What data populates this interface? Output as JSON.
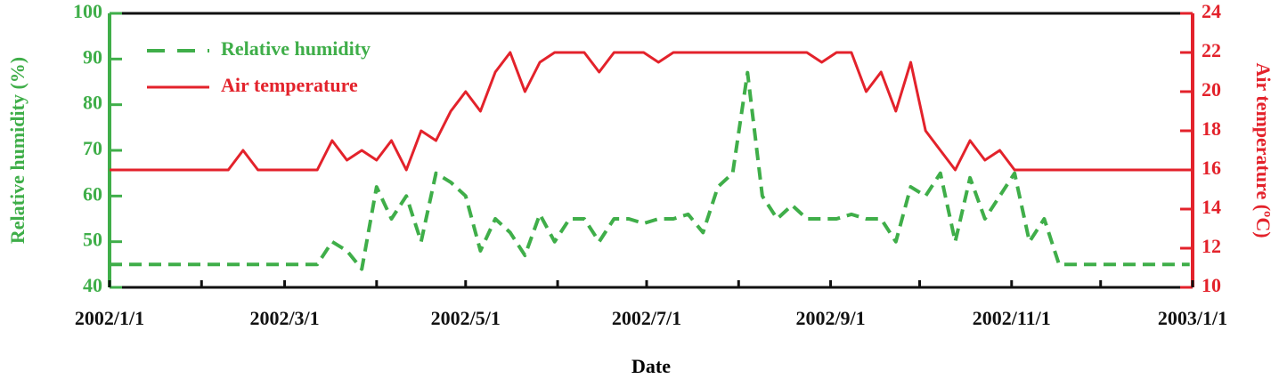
{
  "chart_data": {
    "type": "line",
    "xlabel": "Date",
    "ylabel": "Relative humidity (%)",
    "y2label": "Air temperature (ºC)",
    "x": [
      "2002/1/1",
      "2002/1/6",
      "2002/1/11",
      "2002/1/16",
      "2002/1/21",
      "2002/1/26",
      "2002/1/31",
      "2002/2/5",
      "2002/2/10",
      "2002/2/15",
      "2002/2/20",
      "2002/2/25",
      "2002/3/2",
      "2002/3/7",
      "2002/3/12",
      "2002/3/17",
      "2002/3/22",
      "2002/3/27",
      "2002/4/1",
      "2002/4/6",
      "2002/4/11",
      "2002/4/16",
      "2002/4/21",
      "2002/4/26",
      "2002/5/1",
      "2002/5/6",
      "2002/5/11",
      "2002/5/16",
      "2002/5/21",
      "2002/5/26",
      "2002/5/31",
      "2002/6/5",
      "2002/6/10",
      "2002/6/15",
      "2002/6/20",
      "2002/6/25",
      "2002/6/30",
      "2002/7/5",
      "2002/7/10",
      "2002/7/15",
      "2002/7/20",
      "2002/7/25",
      "2002/7/30",
      "2002/8/4",
      "2002/8/9",
      "2002/8/14",
      "2002/8/19",
      "2002/8/24",
      "2002/8/29",
      "2002/9/3",
      "2002/9/8",
      "2002/9/13",
      "2002/9/18",
      "2002/9/23",
      "2002/9/28",
      "2002/10/3",
      "2002/10/8",
      "2002/10/13",
      "2002/10/18",
      "2002/10/23",
      "2002/10/28",
      "2002/11/2",
      "2002/11/7",
      "2002/11/12",
      "2002/11/17",
      "2002/11/22",
      "2002/11/27",
      "2002/12/2",
      "2002/12/7",
      "2002/12/12",
      "2002/12/17",
      "2002/12/22",
      "2002/12/27",
      "2002/12/31"
    ],
    "series": [
      {
        "name": "Relative humidity",
        "color": "#3fae49",
        "line_style": "dashed",
        "axis": "y",
        "values": [
          45,
          45,
          45,
          45,
          45,
          45,
          45,
          45,
          45,
          45,
          45,
          45,
          45,
          45,
          45,
          50,
          48,
          44,
          62,
          55,
          60,
          50,
          65,
          63,
          60,
          48,
          55,
          52,
          47,
          56,
          50,
          55,
          55,
          50,
          55,
          55,
          54,
          55,
          55,
          56,
          52,
          62,
          65,
          87,
          60,
          55,
          58,
          55,
          55,
          55,
          56,
          55,
          55,
          50,
          62,
          60,
          65,
          50,
          64,
          55,
          60,
          65,
          50,
          55,
          45,
          45,
          45,
          45,
          45,
          45,
          45,
          45,
          45,
          45
        ]
      },
      {
        "name": "Air temperature",
        "color": "#e3222b",
        "line_style": "solid",
        "axis": "y2",
        "values": [
          16,
          16,
          16,
          16,
          16,
          16,
          16,
          16,
          16,
          17,
          16,
          16,
          16,
          16,
          16,
          17.5,
          16.5,
          17,
          16.5,
          17.5,
          16,
          18,
          17.5,
          19,
          20,
          19,
          21,
          22,
          20,
          21.5,
          22,
          22,
          22,
          21,
          22,
          22,
          22,
          21.5,
          22,
          22,
          22,
          22,
          22,
          22,
          22,
          22,
          22,
          22,
          21.5,
          22,
          22,
          20,
          21,
          19,
          21.5,
          18,
          17,
          16,
          17.5,
          16.5,
          17,
          16,
          16,
          16,
          16,
          16,
          16,
          16,
          16,
          16,
          16,
          16,
          16,
          16
        ]
      }
    ],
    "xlim": [
      "2002/1/1",
      "2003/1/1"
    ],
    "xticks": [
      "2002/1/1",
      "2002/3/1",
      "2002/5/1",
      "2002/7/1",
      "2002/9/1",
      "2002/11/1",
      "2003/1/1"
    ],
    "xminor_ticks": [
      "2002/2/1",
      "2002/4/1",
      "2002/6/1",
      "2002/8/1",
      "2002/10/1",
      "2002/12/1"
    ],
    "ylim": [
      40,
      100
    ],
    "yticks": [
      40,
      50,
      60,
      70,
      80,
      90,
      100
    ],
    "y2lim": [
      10,
      24
    ],
    "y2ticks": [
      10,
      12,
      14,
      16,
      18,
      20,
      22,
      24
    ],
    "legend": "upper left"
  }
}
